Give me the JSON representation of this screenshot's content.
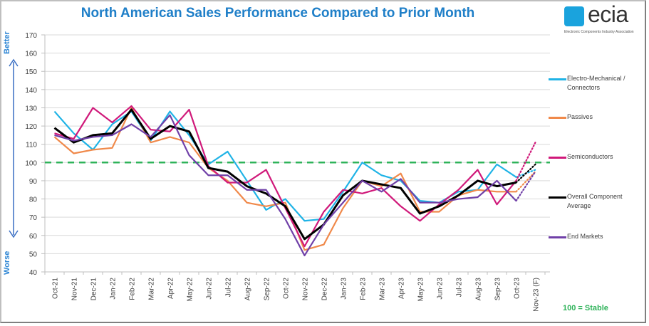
{
  "title": "North American Sales Performance Compared to Prior Month",
  "logo": {
    "name": "ecia",
    "subtitle": "Electronic Components Industry Association"
  },
  "side_labels": {
    "top": "Better",
    "bottom": "Worse"
  },
  "footnote": "100 = Stable",
  "chart_data": {
    "type": "line",
    "title": "North American Sales Performance Compared to Prior Month",
    "xlabel": "",
    "ylabel": "",
    "ylim": [
      40,
      170
    ],
    "yticks": [
      40,
      50,
      60,
      70,
      80,
      90,
      100,
      110,
      120,
      130,
      140,
      150,
      160,
      170
    ],
    "grid": true,
    "legend_position": "right",
    "reference_line": {
      "value": 100,
      "label": "100 = Stable",
      "color": "#2fb35a",
      "style": "dashed"
    },
    "categories": [
      "Oct-21",
      "Nov-21",
      "Dec-21",
      "Jan-22",
      "Feb-22",
      "Mar-22",
      "Apr-22",
      "May-22",
      "Jun-22",
      "Jul-22",
      "Aug-22",
      "Sep-22",
      "Oct-22",
      "Nov-22",
      "Dec-22",
      "Jan-23",
      "Feb-23",
      "Mar-23",
      "Apr-23",
      "May-23",
      "Jun-23",
      "Jul-23",
      "Aug-23",
      "Sep-23",
      "Oct-23",
      "Nov-23 (F)"
    ],
    "forecast_from_index": 24,
    "series": [
      {
        "name": "Electro-Mechanical / Connectors",
        "color": "#1fb3e6",
        "values": [
          128,
          116,
          107,
          121,
          128,
          112,
          128,
          115,
          99,
          106,
          90,
          74,
          80,
          68,
          69,
          84,
          100,
          93,
          90,
          79,
          78,
          84,
          85,
          99,
          92,
          96
        ]
      },
      {
        "name": "Passives",
        "color": "#f0894a",
        "values": [
          114,
          105,
          107,
          108,
          130,
          111,
          114,
          111,
          97,
          90,
          78,
          76,
          78,
          52,
          55,
          75,
          90,
          87,
          94,
          73,
          73,
          82,
          85,
          84,
          84,
          95
        ]
      },
      {
        "name": "Semiconductors",
        "color": "#d0197a",
        "values": [
          116,
          113,
          130,
          122,
          131,
          118,
          117,
          129,
          98,
          89,
          89,
          96,
          75,
          54,
          73,
          85,
          83,
          86,
          76,
          68,
          77,
          85,
          96,
          77,
          90,
          111
        ]
      },
      {
        "name": "Overall Component Average",
        "color": "#000000",
        "values": [
          119,
          111,
          115,
          116,
          129,
          113,
          120,
          117,
          97,
          95,
          87,
          83,
          76,
          58,
          66,
          82,
          90,
          88,
          86,
          72,
          76,
          82,
          90,
          87,
          89,
          99
        ]
      },
      {
        "name": "End Markets",
        "color": "#7040a8",
        "values": [
          115,
          112,
          114,
          115,
          121,
          114,
          126,
          104,
          93,
          93,
          85,
          85,
          69,
          49,
          66,
          78,
          90,
          84,
          91,
          78,
          78,
          80,
          81,
          90,
          79,
          95
        ]
      }
    ]
  }
}
